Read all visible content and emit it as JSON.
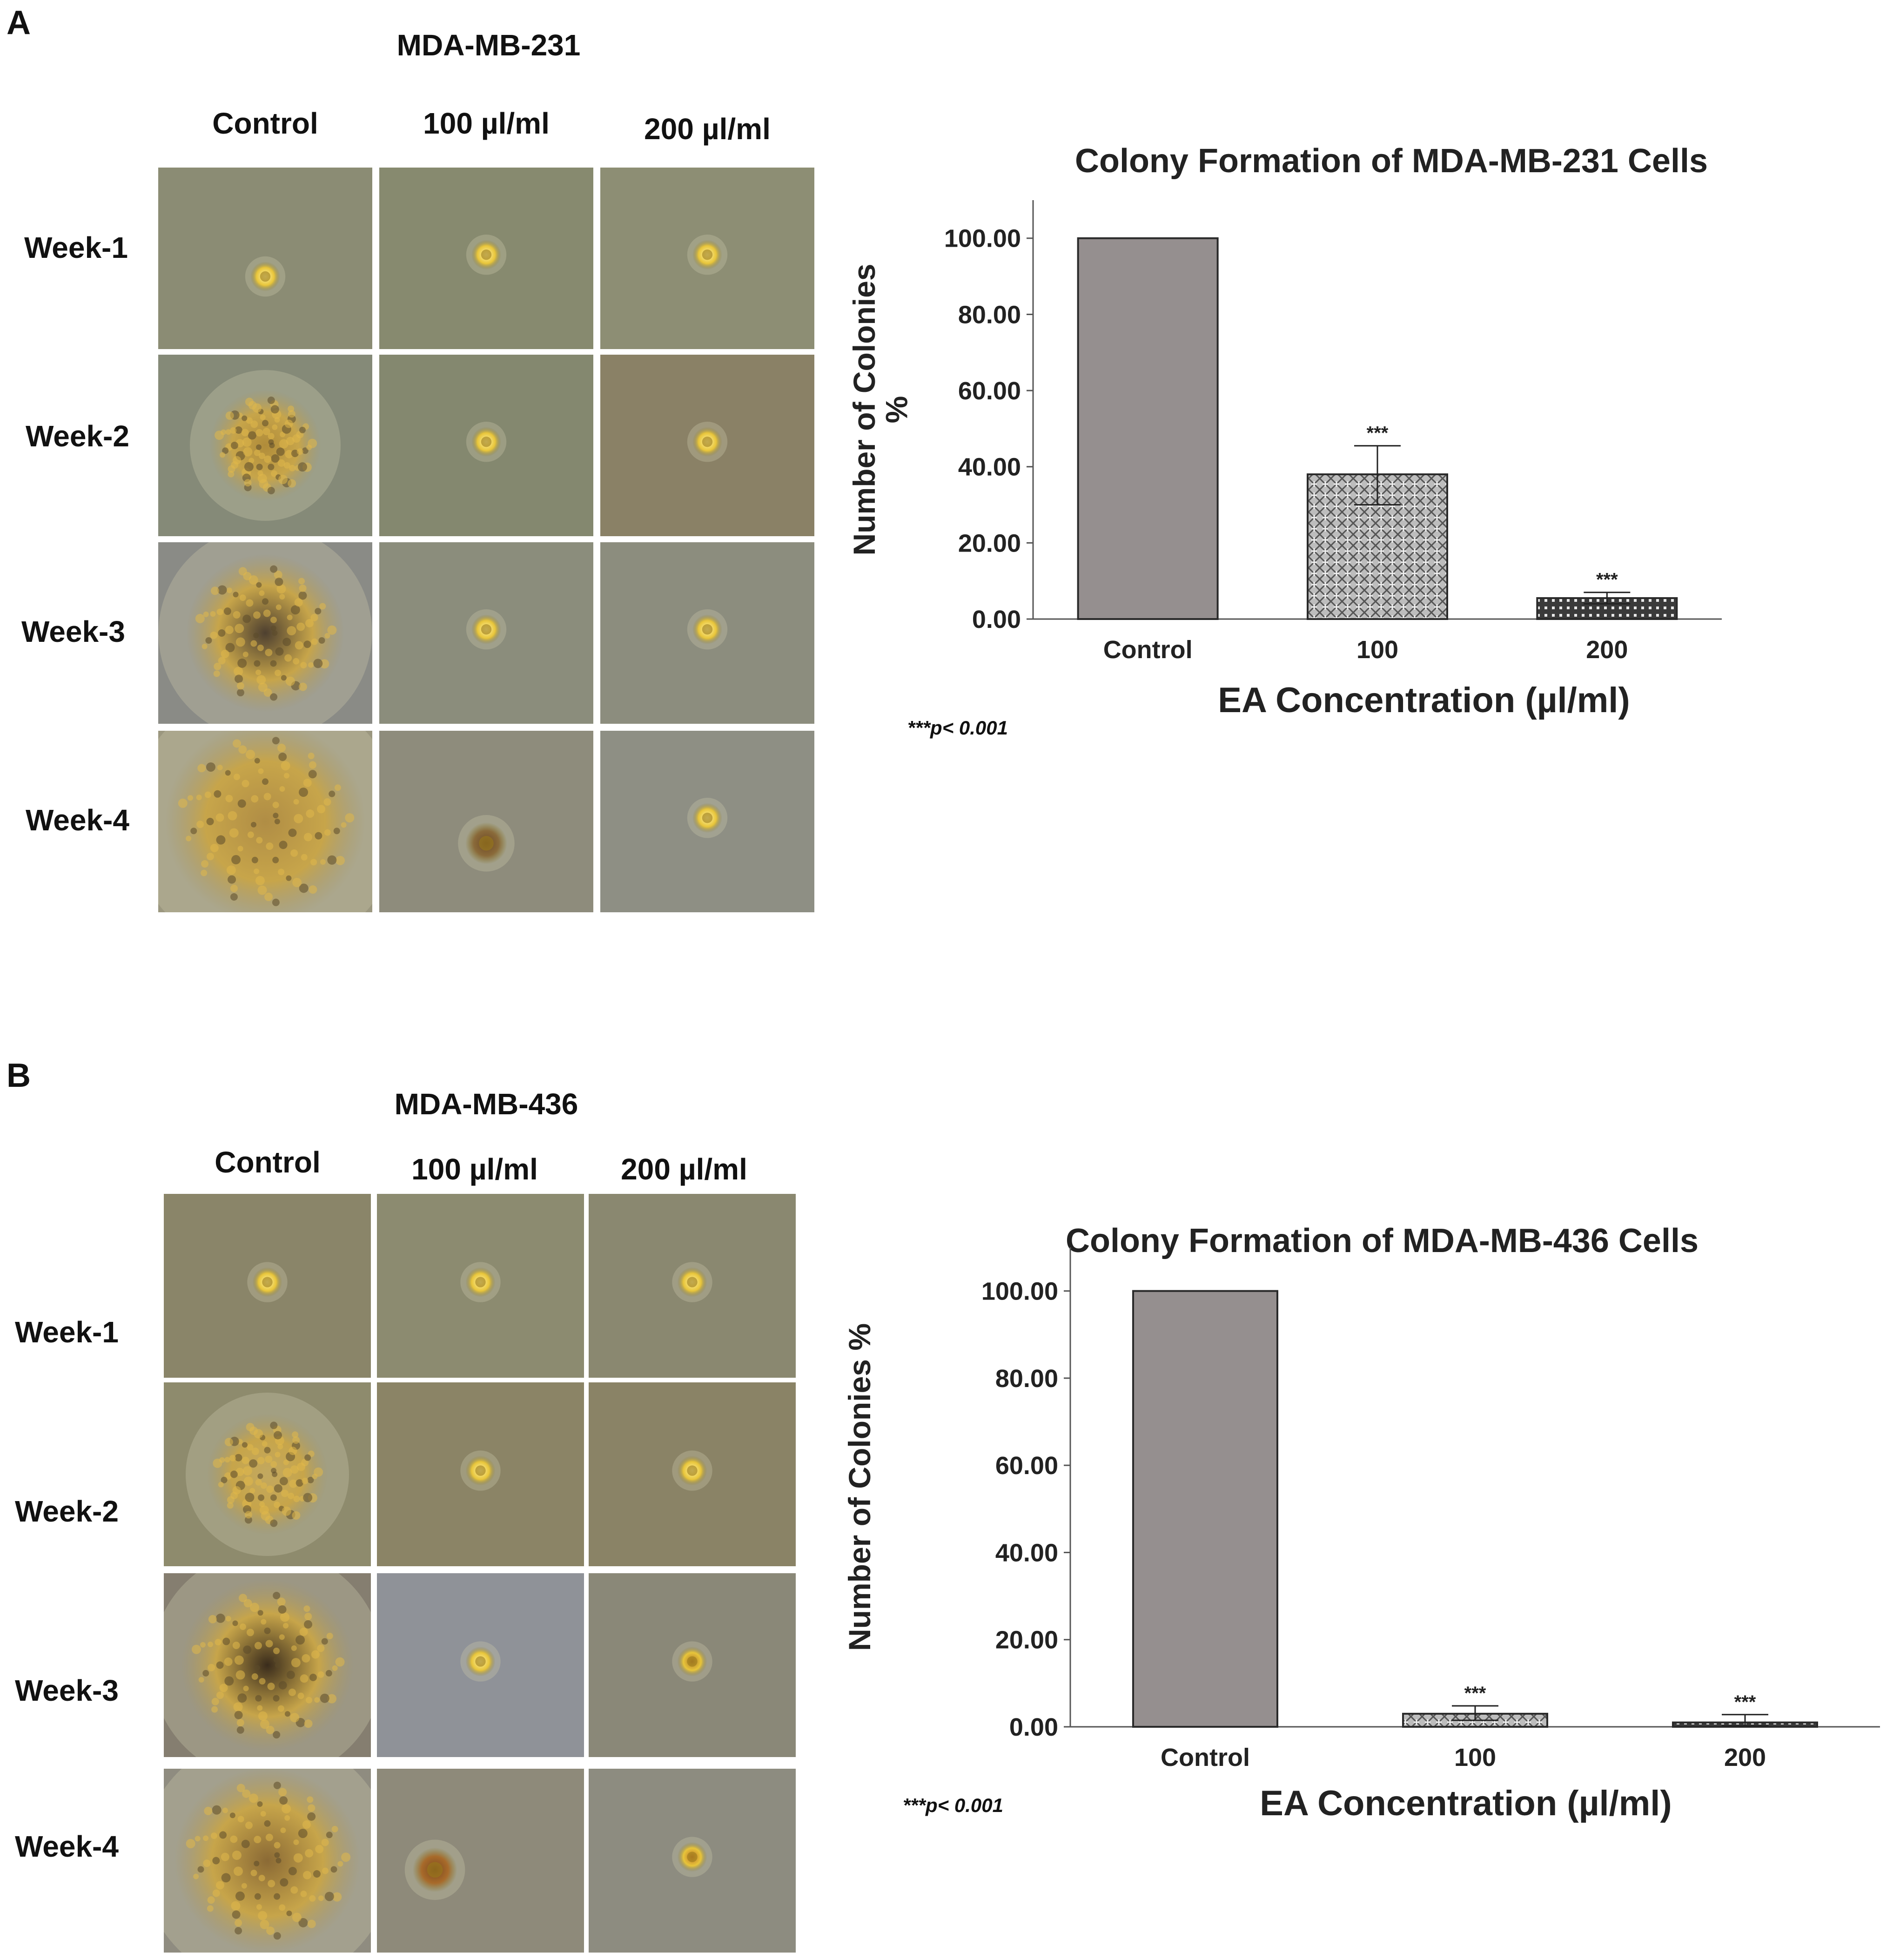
{
  "panels": [
    {
      "letter": "A",
      "cell_line": "MDA-MB-231",
      "columns": [
        "Control",
        "100 µl/ml",
        "200 µl/ml"
      ],
      "rows": [
        "Week-1",
        "Week-2",
        "Week-3",
        "Week-4"
      ],
      "note": "***p< 0.001"
    },
    {
      "letter": "B",
      "cell_line": "MDA-MB-436",
      "columns": [
        "Control",
        "100 µl/ml",
        "200 µl/ml"
      ],
      "rows": [
        "Week-1",
        "Week-2",
        "Week-3",
        "Week-4"
      ],
      "note": "***p< 0.001"
    }
  ],
  "chart_data": [
    {
      "type": "bar",
      "title": "Colony Formation of MDA-MB-231 Cells",
      "categories": [
        "Control",
        "100",
        "200"
      ],
      "values": [
        100.0,
        38.0,
        5.5
      ],
      "error_high": [
        100.0,
        45.5,
        7.0
      ],
      "error_low": [
        100.0,
        30.0,
        4.0
      ],
      "significance": [
        "",
        "***",
        "***"
      ],
      "xlabel": "EA Concentration (µl/ml)",
      "ylabel_lines": [
        "Number of Colonies",
        "%"
      ],
      "ylim": [
        0,
        110
      ],
      "yticks": [
        "0.00",
        "20.00",
        "40.00",
        "60.00",
        "80.00",
        "100.00"
      ],
      "patterns": [
        "solid",
        "crosshatch",
        "checker"
      ]
    },
    {
      "type": "bar",
      "title": "Colony Formation of MDA-MB-436 Cells",
      "categories": [
        "Control",
        "100",
        "200"
      ],
      "values": [
        100.0,
        3.0,
        1.0
      ],
      "error_high": [
        100.0,
        4.8,
        2.8
      ],
      "error_low": [
        100.0,
        1.5,
        0.2
      ],
      "significance": [
        "",
        "***",
        "***"
      ],
      "xlabel": "EA Concentration (µl/ml)",
      "ylabel_lines": [
        "Number of Colonies %"
      ],
      "ylim": [
        0,
        110
      ],
      "yticks": [
        "0.00",
        "20.00",
        "40.00",
        "60.00",
        "80.00",
        "100.00"
      ],
      "patterns": [
        "solid",
        "crosshatch",
        "checker"
      ]
    }
  ],
  "colors": {
    "bar_fill": "#958f8f",
    "bar_stroke": "#2a2a2a",
    "axis": "#555555",
    "tile_bg": "#8a8d6e",
    "colony": "#f2c94c"
  }
}
